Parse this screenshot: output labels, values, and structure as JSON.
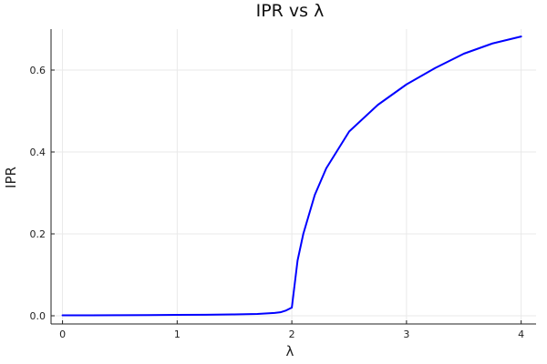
{
  "chart_data": {
    "type": "line",
    "title": "IPR vs λ",
    "xlabel": "λ",
    "ylabel": "IPR",
    "xlim": [
      -0.1,
      4.13
    ],
    "ylim": [
      -0.02,
      0.7
    ],
    "xticks": [
      0,
      1,
      2,
      3,
      4
    ],
    "yticks": [
      0.0,
      0.2,
      0.4,
      0.6
    ],
    "xtick_labels": [
      "0",
      "1",
      "2",
      "3",
      "4"
    ],
    "ytick_labels": [
      "0.0",
      "0.2",
      "0.4",
      "0.6"
    ],
    "grid": true,
    "legend": "none",
    "series": [
      {
        "color": "#0000ff",
        "x": [
          0.0,
          0.25,
          0.5,
          0.75,
          1.0,
          1.25,
          1.5,
          1.7,
          1.8,
          1.85,
          1.9,
          1.95,
          2.0,
          2.05,
          2.1,
          2.2,
          2.3,
          2.5,
          2.75,
          3.0,
          3.25,
          3.5,
          3.75,
          4.0
        ],
        "y": [
          0.001,
          0.0012,
          0.0014,
          0.0017,
          0.0021,
          0.0026,
          0.0034,
          0.0045,
          0.006,
          0.007,
          0.0085,
          0.013,
          0.02,
          0.135,
          0.2,
          0.295,
          0.36,
          0.45,
          0.515,
          0.565,
          0.605,
          0.64,
          0.665,
          0.682
        ]
      }
    ]
  }
}
